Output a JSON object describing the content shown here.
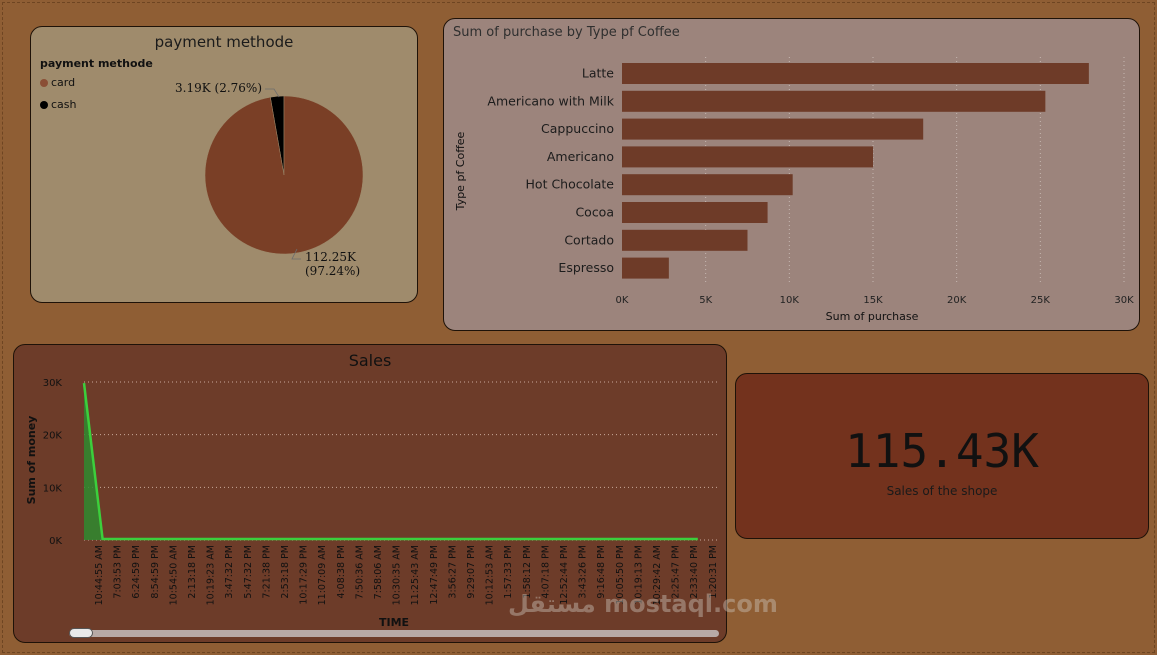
{
  "charts": {
    "payment": {
      "title": "payment methode",
      "legend_title": "payment methode",
      "legend": [
        {
          "label": "card",
          "color": "#7a3f26"
        },
        {
          "label": "cash",
          "color": "#000000"
        }
      ],
      "labels": {
        "cash_value": "3.19K (2.76%)",
        "card_value": "112.25K",
        "card_pct": "(97.24%)"
      }
    },
    "coffee": {
      "title": "Sum of purchase by Type pf Coffee",
      "xlabel": "Sum of purchase",
      "ylabel": "Type pf Coffee",
      "ticks": [
        "0K",
        "5K",
        "10K",
        "15K",
        "20K",
        "25K",
        "30K"
      ],
      "bar_color": "#6e3b28"
    },
    "sales": {
      "title": "Sales",
      "ylabel": "Sum of money",
      "xlabel": "TIME",
      "yticks": [
        "30K",
        "20K",
        "10K",
        "0K"
      ],
      "line_color": "#3ccf3c"
    }
  },
  "kpi": {
    "value": "115.43K",
    "label": "Sales of the shope"
  },
  "watermark": "مستقل mostaql.com",
  "chart_data": [
    {
      "type": "pie",
      "title": "payment methode",
      "slices": [
        {
          "label": "card",
          "value": 112.25,
          "percent": 97.24
        },
        {
          "label": "cash",
          "value": 3.19,
          "percent": 2.76
        }
      ],
      "unit": "K",
      "legend": "top-left"
    },
    {
      "type": "bar",
      "orientation": "horizontal",
      "title": "Sum of purchase by Type pf Coffee",
      "xlabel": "Sum of purchase",
      "ylabel": "Type pf Coffee",
      "categories": [
        "Latte",
        "Americano with Milk",
        "Cappuccino",
        "Americano",
        "Hot Chocolate",
        "Cocoa",
        "Cortado",
        "Espresso"
      ],
      "values": [
        27900,
        25300,
        18000,
        15000,
        10200,
        8700,
        7500,
        2800
      ],
      "xlim": [
        0,
        30000
      ],
      "grid": true
    },
    {
      "type": "area",
      "title": "Sales",
      "xlabel": "TIME",
      "ylabel": "Sum of money",
      "x": [
        "10:44:55 AM",
        "7:03:53 PM",
        "6:24:59 PM",
        "8:54:59 PM",
        "10:54:50 AM",
        "2:13:18 PM",
        "10:19:23 AM",
        "3:47:32 PM",
        "5:47:32 PM",
        "7:21:38 PM",
        "2:53:18 PM",
        "10:17:29 PM",
        "11:07:09 AM",
        "4:08:38 PM",
        "7:50:36 AM",
        "7:58:06 AM",
        "10:30:35 AM",
        "11:25:43 AM",
        "12:47:49 PM",
        "3:56:27 PM",
        "9:29:07 PM",
        "10:12:53 AM",
        "1:57:33 PM",
        "1:58:12 PM",
        "4:07:18 PM",
        "12:52:44 PM",
        "3:43:26 PM",
        "9:16:48 PM",
        "10:05:50 PM",
        "10:19:13 PM",
        "10:29:42 AM",
        "2:25:47 PM",
        "2:33:40 PM",
        "1:20:31 PM"
      ],
      "values": [
        29800,
        180,
        180,
        180,
        180,
        180,
        180,
        180,
        180,
        180,
        180,
        180,
        180,
        180,
        180,
        180,
        180,
        180,
        180,
        180,
        180,
        180,
        180,
        180,
        180,
        180,
        180,
        180,
        180,
        180,
        180,
        180,
        180,
        180
      ],
      "ylim": [
        0,
        30000
      ],
      "grid": true
    }
  ]
}
